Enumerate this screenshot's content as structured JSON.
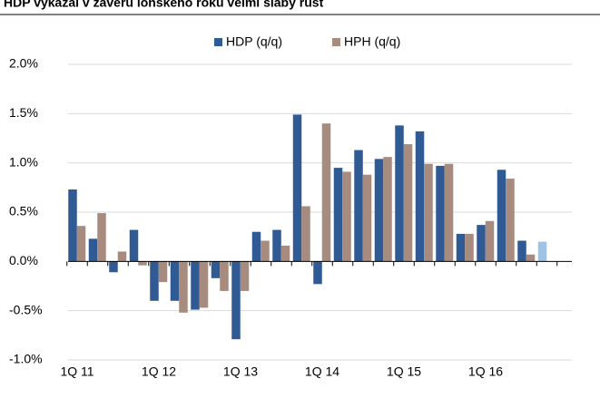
{
  "chart_data": {
    "type": "bar",
    "title": "HDP vykázal v závěru loňského roku velmi slabý růst",
    "categories": [
      "1Q 11",
      null,
      null,
      null,
      "1Q 12",
      null,
      null,
      null,
      "1Q 13",
      null,
      null,
      null,
      "1Q 14",
      null,
      null,
      null,
      "1Q 15",
      null,
      null,
      null,
      "1Q 16",
      null,
      null,
      null
    ],
    "series": [
      {
        "name": "HDP (q/q)",
        "color": "#2f5a94",
        "values": [
          0.73,
          0.23,
          -0.11,
          0.32,
          -0.4,
          -0.4,
          -0.49,
          -0.17,
          -0.79,
          0.3,
          0.32,
          1.49,
          -0.23,
          0.95,
          1.13,
          1.04,
          1.38,
          1.32,
          0.97,
          0.28,
          0.37,
          0.93,
          0.21,
          0.2
        ],
        "colors": [
          "#2f5a94",
          "#2f5a94",
          "#2f5a94",
          "#2f5a94",
          "#2f5a94",
          "#2f5a94",
          "#2f5a94",
          "#2f5a94",
          "#2f5a94",
          "#2f5a94",
          "#2f5a94",
          "#2f5a94",
          "#2f5a94",
          "#2f5a94",
          "#2f5a94",
          "#2f5a94",
          "#2f5a94",
          "#2f5a94",
          "#2f5a94",
          "#2f5a94",
          "#2f5a94",
          "#2f5a94",
          "#2f5a94",
          "#9dc3e6"
        ]
      },
      {
        "name": "HPH (q/q)",
        "color": "#a68b7e",
        "values": [
          0.36,
          0.49,
          0.1,
          -0.04,
          -0.21,
          -0.52,
          -0.47,
          -0.3,
          -0.3,
          0.21,
          0.16,
          0.56,
          1.4,
          0.91,
          0.88,
          1.06,
          1.19,
          0.99,
          0.99,
          0.28,
          0.41,
          0.84,
          0.07,
          null
        ]
      }
    ],
    "ylim": [
      -1,
      2
    ],
    "yticks": [
      {
        "value": -1,
        "label": "-1.0%"
      },
      {
        "value": -0.5,
        "label": "-0.5%"
      },
      {
        "value": 0,
        "label": "0.0%"
      },
      {
        "value": 0.5,
        "label": "0.5%"
      },
      {
        "value": 1,
        "label": "1.0%"
      },
      {
        "value": 1.5,
        "label": "1.5%"
      },
      {
        "value": 2,
        "label": "2.0%"
      }
    ],
    "grid": true,
    "legend": "top"
  }
}
